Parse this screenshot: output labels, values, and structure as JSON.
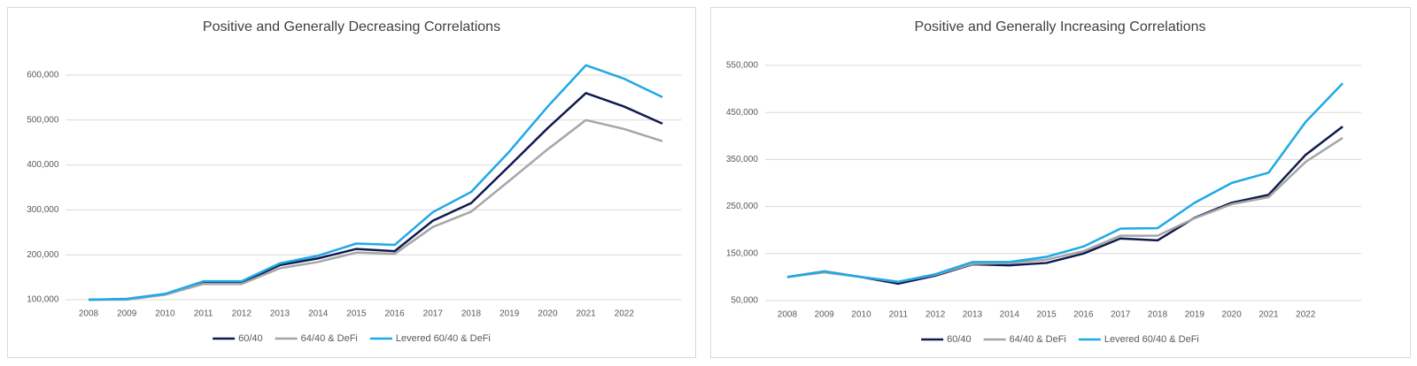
{
  "chart_data": [
    {
      "type": "line",
      "title": "Positive and Generally Decreasing Correlations",
      "categories": [
        "2008",
        "2009",
        "2010",
        "2011",
        "2012",
        "2013",
        "2014",
        "2015",
        "2016",
        "2017",
        "2018",
        "2019",
        "2020",
        "2021",
        "2022",
        null
      ],
      "series": [
        {
          "name": "60/40",
          "color": "#0f1a4f",
          "values": [
            100000,
            101000,
            112000,
            138000,
            138000,
            177000,
            192000,
            213000,
            208000,
            276000,
            315000,
            398000,
            482000,
            560000,
            530000,
            492000
          ]
        },
        {
          "name": "64/40 & DeFi",
          "color": "#a6a6a6",
          "values": [
            100000,
            100000,
            111000,
            135000,
            135000,
            170000,
            184000,
            205000,
            202000,
            262000,
            296000,
            365000,
            435000,
            500000,
            480000,
            453000
          ]
        },
        {
          "name": "Levered 60/40 & DeFi",
          "color": "#1fa9e6",
          "values": [
            100000,
            102000,
            113000,
            141000,
            141000,
            181000,
            198000,
            225000,
            222000,
            295000,
            340000,
            430000,
            530000,
            622000,
            592000,
            551000
          ]
        }
      ],
      "ylim": [
        100000,
        650000
      ],
      "yticks": [
        {
          "value": 100000,
          "label": "100,000"
        },
        {
          "value": 200000,
          "label": "200,000"
        },
        {
          "value": 300000,
          "label": "300,000"
        },
        {
          "value": 400000,
          "label": "400,000"
        },
        {
          "value": 500000,
          "label": "500,000"
        },
        {
          "value": 600000,
          "label": "600,000"
        }
      ],
      "grid": true,
      "legend": "bottom"
    },
    {
      "type": "line",
      "title": "Positive and Generally Increasing Correlations",
      "categories": [
        "2008",
        "2009",
        "2010",
        "2011",
        "2012",
        "2013",
        "2014",
        "2015",
        "2016",
        "2017",
        "2018",
        "2019",
        "2020",
        "2021",
        "2022",
        null
      ],
      "series": [
        {
          "name": "60/40",
          "color": "#0f1a4f",
          "values": [
            100000,
            112000,
            100000,
            86000,
            103000,
            127000,
            125000,
            130000,
            150000,
            182000,
            178000,
            226000,
            258000,
            275000,
            360000,
            420000
          ]
        },
        {
          "name": "64/40 & DeFi",
          "color": "#a6a6a6",
          "values": [
            100000,
            110000,
            100000,
            90000,
            105000,
            128000,
            130000,
            137000,
            155000,
            188000,
            188000,
            225000,
            255000,
            270000,
            345000,
            396000
          ]
        },
        {
          "name": "Levered 60/40 & DeFi",
          "color": "#1fa9e6",
          "values": [
            100000,
            112000,
            100000,
            90000,
            106000,
            132000,
            132000,
            143000,
            165000,
            203000,
            204000,
            258000,
            300000,
            322000,
            430000,
            512000
          ]
        }
      ],
      "ylim": [
        50000,
        550000
      ],
      "yticks": [
        {
          "value": 50000,
          "label": "50,000"
        },
        {
          "value": 150000,
          "label": "150,000"
        },
        {
          "value": 250000,
          "label": "250,000"
        },
        {
          "value": 350000,
          "label": "350,000"
        },
        {
          "value": 450000,
          "label": "450,000"
        },
        {
          "value": 550000,
          "label": "550,000"
        }
      ],
      "grid": true,
      "legend": "bottom"
    }
  ]
}
